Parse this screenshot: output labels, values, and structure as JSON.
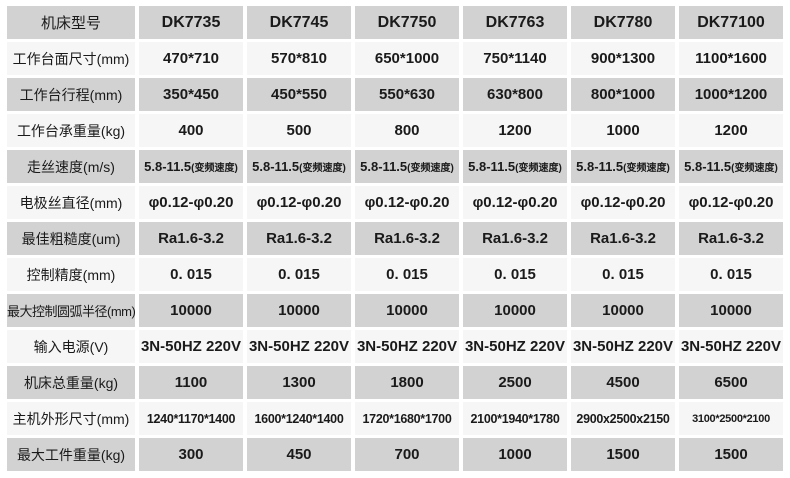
{
  "colors": {
    "background": "#ffffff",
    "row_gray": "#d2d2d2",
    "row_light": "#f6f6f6",
    "text": "#1a1a1a"
  },
  "table": {
    "header": {
      "label": "机床型号",
      "models": [
        "DK7735",
        "DK7745",
        "DK7750",
        "DK7763",
        "DK7780",
        "DK77100"
      ]
    },
    "rows": [
      {
        "label": "工作台面尺寸(mm)",
        "values": [
          "470*710",
          "570*810",
          "650*1000",
          "750*1140",
          "900*1300",
          "1100*1600"
        ]
      },
      {
        "label": "工作台行程(mm)",
        "values": [
          "350*450",
          "450*550",
          "550*630",
          "630*800",
          "800*1000",
          "1000*1200"
        ]
      },
      {
        "label": "工作台承重量(kg)",
        "values": [
          "400",
          "500",
          "800",
          "1200",
          "1000",
          "1200"
        ]
      },
      {
        "label": "走丝速度(m/s)",
        "main": "5.8-11.5",
        "note": "(变频速度)"
      },
      {
        "label": "电极丝直径(mm)",
        "values": [
          "φ0.12-φ0.20",
          "φ0.12-φ0.20",
          "φ0.12-φ0.20",
          "φ0.12-φ0.20",
          "φ0.12-φ0.20",
          "φ0.12-φ0.20"
        ]
      },
      {
        "label": "最佳粗糙度(um)",
        "values": [
          "Ra1.6-3.2",
          "Ra1.6-3.2",
          "Ra1.6-3.2",
          "Ra1.6-3.2",
          "Ra1.6-3.2",
          "Ra1.6-3.2"
        ]
      },
      {
        "label": "控制精度(mm)",
        "values": [
          "0. 015",
          "0. 015",
          "0. 015",
          "0. 015",
          "0. 015",
          "0. 015"
        ]
      },
      {
        "label": "最大控制圆弧半径(mm)",
        "values": [
          "10000",
          "10000",
          "10000",
          "10000",
          "10000",
          "10000"
        ]
      },
      {
        "label": "输入电源(V)",
        "values": [
          "3N-50HZ 220V",
          "3N-50HZ 220V",
          "3N-50HZ 220V",
          "3N-50HZ 220V",
          "3N-50HZ 220V",
          "3N-50HZ 220V"
        ]
      },
      {
        "label": "机床总重量(kg)",
        "values": [
          "1100",
          "1300",
          "1800",
          "2500",
          "4500",
          "6500"
        ]
      },
      {
        "label": "主机外形尺寸(mm)",
        "values": [
          "1240*1170*1400",
          "1600*1240*1400",
          "1720*1680*1700",
          "2100*1940*1780",
          "2900x2500x2150",
          "3100*2500*2100"
        ]
      },
      {
        "label": "最大工件重量(kg)",
        "values": [
          "300",
          "450",
          "700",
          "1000",
          "1500",
          "1500"
        ]
      }
    ]
  }
}
